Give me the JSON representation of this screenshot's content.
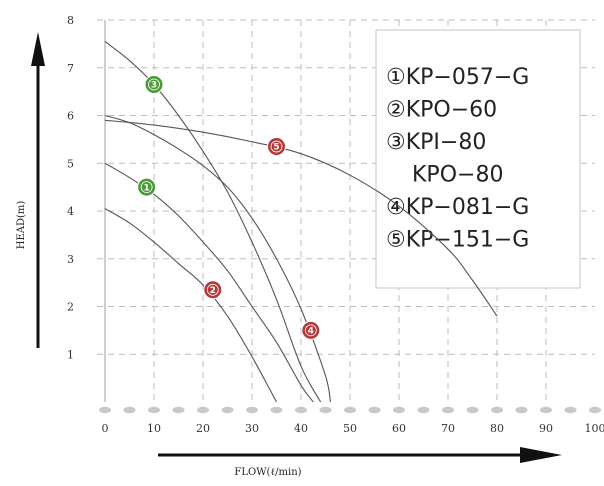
{
  "chart_data": {
    "type": "line",
    "xlabel": "FLOW(ℓ/min)",
    "ylabel": "HEAD(m)",
    "xlim": [
      0,
      100
    ],
    "ylim": [
      0,
      8
    ],
    "xticks": [
      "0",
      "10",
      "20",
      "30",
      "40",
      "50",
      "60",
      "70",
      "80",
      "90",
      "100"
    ],
    "yticks": [
      "1",
      "2",
      "3",
      "4",
      "5",
      "6",
      "7",
      "8"
    ],
    "grid": "dashed",
    "legend_position": "top-right",
    "legend": [
      "①KP−057−G",
      "②KPO−60",
      "③KPI−80",
      "KPO−80",
      "④KP−081−G",
      "⑤KP−151−G"
    ],
    "series": [
      {
        "marker_label": "1",
        "color": "#4a9a3a",
        "marker": [
          8.5,
          4.5
        ],
        "x": [
          0,
          5,
          10,
          15,
          20,
          25,
          30,
          35,
          40,
          42.5
        ],
        "y": [
          5.0,
          4.7,
          4.35,
          3.9,
          3.35,
          2.75,
          2.0,
          1.25,
          0.35,
          0.0
        ]
      },
      {
        "marker_label": "2",
        "color": "#b23a38",
        "marker": [
          22,
          2.35
        ],
        "x": [
          0,
          5,
          10,
          15,
          20,
          25,
          30,
          35
        ],
        "y": [
          4.05,
          3.75,
          3.35,
          2.9,
          2.45,
          1.8,
          0.95,
          0.0
        ]
      },
      {
        "marker_label": "3",
        "color": "#4a9a3a",
        "marker": [
          10,
          6.65
        ],
        "x": [
          0,
          5,
          10,
          15,
          20,
          25,
          30,
          35,
          40,
          44
        ],
        "y": [
          7.55,
          7.15,
          6.65,
          6.0,
          5.25,
          4.4,
          3.35,
          2.15,
          0.75,
          0.0
        ]
      },
      {
        "marker_label": "4",
        "color": "#b23a38",
        "marker": [
          42,
          1.5
        ],
        "x": [
          0,
          5,
          10,
          15,
          20,
          25,
          30,
          35,
          40,
          45,
          46
        ],
        "y": [
          6.0,
          5.85,
          5.6,
          5.3,
          4.95,
          4.5,
          3.85,
          3.0,
          1.95,
          0.55,
          0.0
        ]
      },
      {
        "marker_label": "5",
        "color": "#b23a38",
        "marker": [
          35,
          5.35
        ],
        "x": [
          0,
          10,
          20,
          30,
          40,
          50,
          60,
          70,
          75,
          80
        ],
        "y": [
          5.9,
          5.8,
          5.65,
          5.45,
          5.2,
          4.75,
          4.1,
          3.2,
          2.55,
          1.8
        ]
      }
    ]
  }
}
